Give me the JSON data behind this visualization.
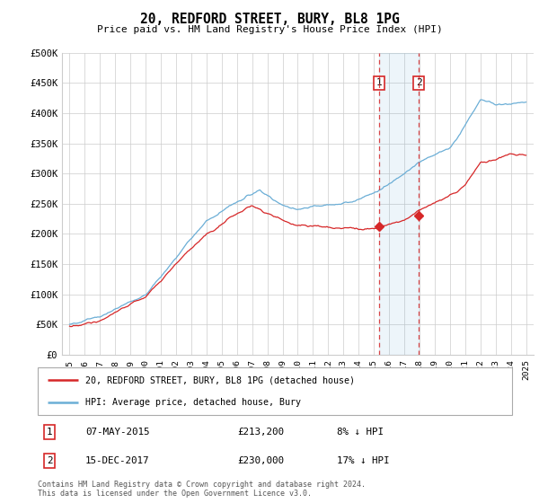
{
  "title": "20, REDFORD STREET, BURY, BL8 1PG",
  "subtitle": "Price paid vs. HM Land Registry's House Price Index (HPI)",
  "ylim": [
    0,
    500000
  ],
  "yticks": [
    0,
    50000,
    100000,
    150000,
    200000,
    250000,
    300000,
    350000,
    400000,
    450000,
    500000
  ],
  "ytick_labels": [
    "£0",
    "£50K",
    "£100K",
    "£150K",
    "£200K",
    "£250K",
    "£300K",
    "£350K",
    "£400K",
    "£450K",
    "£500K"
  ],
  "xlim_start": 1994.5,
  "xlim_end": 2025.5,
  "xticks": [
    1995,
    1996,
    1997,
    1998,
    1999,
    2000,
    2001,
    2002,
    2003,
    2004,
    2005,
    2006,
    2007,
    2008,
    2009,
    2010,
    2011,
    2012,
    2013,
    2014,
    2015,
    2016,
    2017,
    2018,
    2019,
    2020,
    2021,
    2022,
    2023,
    2024,
    2025
  ],
  "hpi_color": "#6baed6",
  "price_color": "#d62728",
  "marker1_year": 2015.35,
  "marker2_year": 2017.95,
  "marker1_price": 213200,
  "marker2_price": 230000,
  "legend_line1": "20, REDFORD STREET, BURY, BL8 1PG (detached house)",
  "legend_line2": "HPI: Average price, detached house, Bury",
  "annotation1_num": "1",
  "annotation1_date": "07-MAY-2015",
  "annotation1_price": "£213,200",
  "annotation1_hpi": "8% ↓ HPI",
  "annotation2_num": "2",
  "annotation2_date": "15-DEC-2017",
  "annotation2_price": "£230,000",
  "annotation2_hpi": "17% ↓ HPI",
  "footnote": "Contains HM Land Registry data © Crown copyright and database right 2024.\nThis data is licensed under the Open Government Licence v3.0.",
  "background_color": "#ffffff",
  "grid_color": "#cccccc"
}
